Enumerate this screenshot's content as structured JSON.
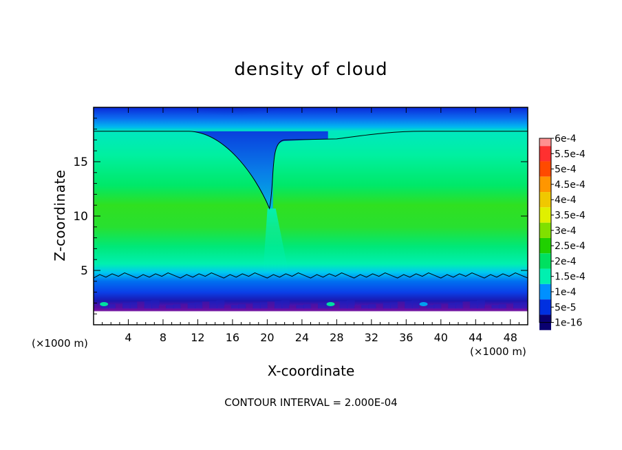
{
  "chart_data": {
    "type": "heatmap",
    "title": "density of cloud",
    "xlabel": "X-coordinate",
    "ylabel": "Z-coordinate",
    "x_unit_label": "(×1000 m)",
    "x_ticks": [
      "4",
      "8",
      "12",
      "16",
      "20",
      "24",
      "28",
      "32",
      "36",
      "40",
      "44",
      "48"
    ],
    "x_tick_values": [
      4,
      8,
      12,
      16,
      20,
      24,
      28,
      32,
      36,
      40,
      44,
      48
    ],
    "y_ticks": [
      "5",
      "10",
      "15"
    ],
    "y_tick_values": [
      5,
      10,
      15
    ],
    "xlim": [
      0,
      50
    ],
    "ylim": [
      0,
      20
    ],
    "colorbar_labels": [
      "6e-4",
      "5.5e-4",
      "5e-4",
      "4.5e-4",
      "4e-4",
      "3.5e-4",
      "3e-4",
      "2.5e-4",
      "2e-4",
      "1.5e-4",
      "1e-4",
      "5e-5",
      "1e-16"
    ],
    "colorbar_colors": [
      "#ff9090",
      "#ff3030",
      "#ff4a00",
      "#ff9600",
      "#f0c800",
      "#e0f000",
      "#80e000",
      "#20d000",
      "#00e060",
      "#00f0b0",
      "#0090ff",
      "#0030e0",
      "#0a0070"
    ],
    "contour_interval": "CONTOUR INTERVAL = 2.000E-04",
    "features": {
      "cloud_top_z": 17.8,
      "cloud_base_z": 4.5,
      "core_max_density": 0.00032,
      "downdraft_center_x": 20.5,
      "downdraft_bottom_z": 10.7,
      "no_data_below_z": 1.5
    }
  }
}
